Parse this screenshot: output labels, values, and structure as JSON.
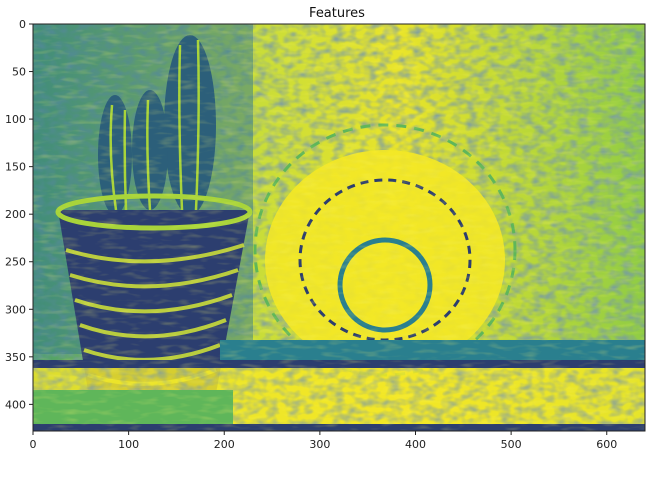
{
  "title": "Features",
  "image": {
    "description_colors": {
      "dark": "#2c3e6f",
      "teal": "#2a7f8e",
      "green": "#5fb65a",
      "lime": "#a8d43a",
      "yellow": "#f4e826"
    }
  },
  "axes": {
    "x_ticks": [
      "0",
      "100",
      "200",
      "300",
      "400",
      "500",
      "600"
    ],
    "y_ticks": [
      "0",
      "50",
      "100",
      "150",
      "200",
      "250",
      "300",
      "350",
      "400"
    ],
    "xlim": [
      0,
      640
    ],
    "ylim": [
      428,
      0
    ]
  }
}
